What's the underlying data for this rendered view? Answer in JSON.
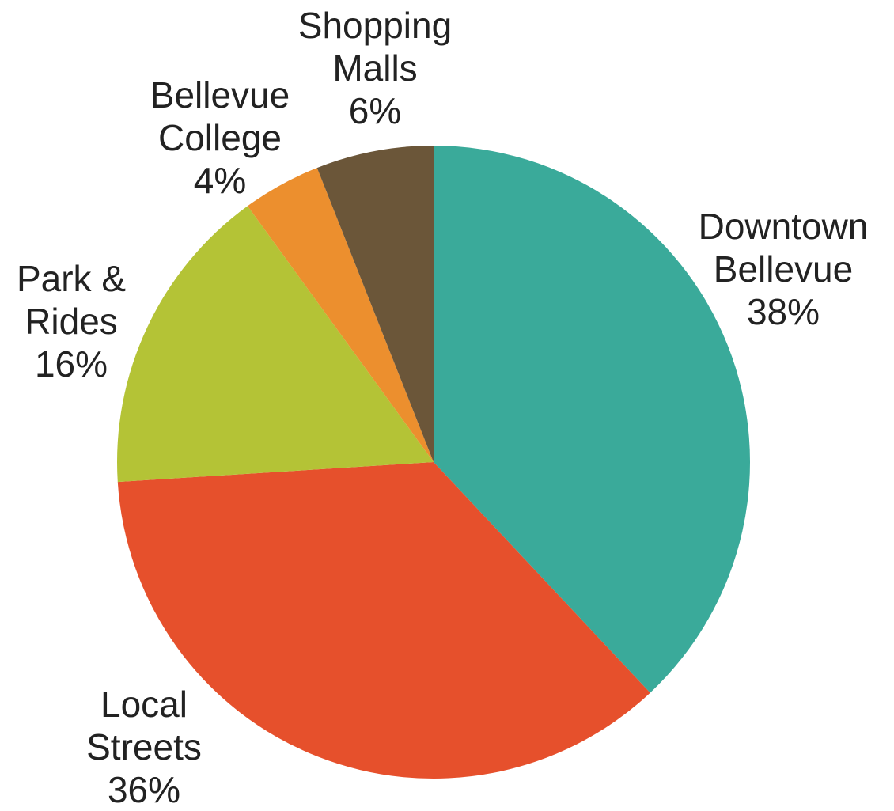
{
  "chart_data": {
    "type": "pie",
    "title": "",
    "slices": [
      {
        "name_lines": [
          "Downtown",
          "Bellevue"
        ],
        "pct_label": "38%",
        "value": 38,
        "color": "#3aaa9a"
      },
      {
        "name_lines": [
          "Local",
          "Streets"
        ],
        "pct_label": "36%",
        "value": 36,
        "color": "#e6502c"
      },
      {
        "name_lines": [
          "Park &",
          "Rides"
        ],
        "pct_label": "16%",
        "value": 16,
        "color": "#b4c336"
      },
      {
        "name_lines": [
          "Bellevue",
          "College"
        ],
        "pct_label": "4%",
        "value": 4,
        "color": "#ec8f2e"
      },
      {
        "name_lines": [
          "Shopping",
          "Malls"
        ],
        "pct_label": "6%",
        "value": 6,
        "color": "#6b5639"
      }
    ],
    "start": "12 o'clock",
    "direction": "clockwise",
    "legend": "none"
  }
}
